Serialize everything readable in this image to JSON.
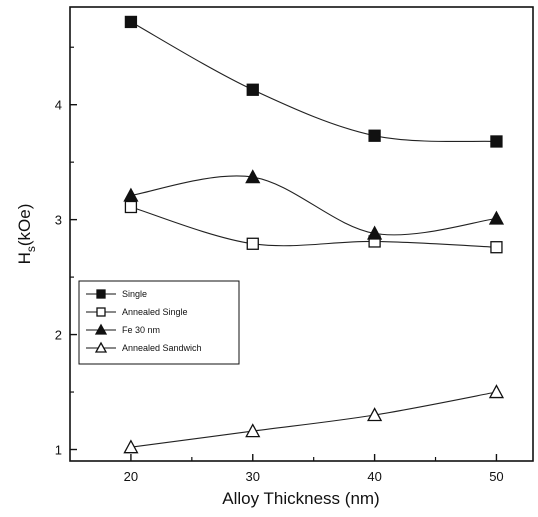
{
  "chart_data": {
    "type": "scatter",
    "title": "",
    "xlabel": "Alloy Thickness (nm)",
    "ylabel": {
      "base": "H",
      "sub": "s",
      "rest": "(kOe)"
    },
    "x": [
      20,
      30,
      40,
      50
    ],
    "xlim": [
      15,
      53
    ],
    "ylim": [
      0.9,
      4.85
    ],
    "xticks": [
      20,
      30,
      40,
      50
    ],
    "yticks": [
      1,
      2,
      3,
      4
    ],
    "grid": false,
    "legend_position": "lower-left",
    "series": [
      {
        "name": "Single",
        "marker": "filled-square",
        "values": [
          4.72,
          4.13,
          3.73,
          3.68
        ],
        "fit": "smooth"
      },
      {
        "name": "Annealed Single",
        "marker": "open-square",
        "values": [
          3.11,
          2.79,
          2.81,
          2.76
        ],
        "fit": "smooth"
      },
      {
        "name": "Fe 30 nm",
        "marker": "filled-triangle",
        "values": [
          3.21,
          3.37,
          2.88,
          3.01
        ],
        "fit": "smooth"
      },
      {
        "name": "Annealed Sandwich",
        "marker": "open-triangle",
        "values": [
          1.02,
          1.16,
          1.3,
          1.5
        ],
        "fit": "smooth"
      }
    ]
  }
}
